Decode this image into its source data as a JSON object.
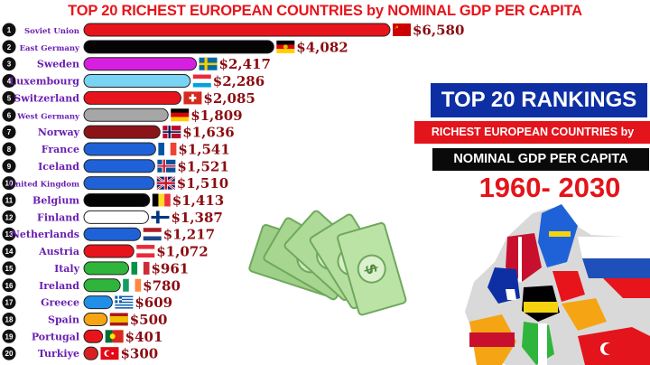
{
  "chart_data": {
    "type": "bar",
    "orientation": "horizontal",
    "title": "TOP 20 RICHEST EUROPEAN COUNTRIES by NOMINAL GDP PER CAPITA",
    "categories": [
      "Soviet Union",
      "East Germany",
      "Sweden",
      "Luxembourg",
      "Switzerland",
      "West Germany",
      "Norway",
      "France",
      "Iceland",
      "United Kingdom",
      "Belgium",
      "Finland",
      "Netherlands",
      "Austria",
      "Italy",
      "Ireland",
      "Greece",
      "Spain",
      "Portugal",
      "Turkiye"
    ],
    "ranks": [
      "1",
      "2",
      "3",
      "4",
      "5",
      "6",
      "7",
      "8",
      "9",
      "10",
      "11",
      "12",
      "13",
      "14",
      "15",
      "16",
      "17",
      "18",
      "19",
      "20"
    ],
    "values": [
      6580,
      4082,
      2417,
      2286,
      2085,
      1809,
      1636,
      1541,
      1521,
      1510,
      1413,
      1387,
      1217,
      1072,
      961,
      780,
      609,
      500,
      401,
      300
    ],
    "value_labels": [
      "$6,580",
      "$4,082",
      "$2,417",
      "$2,286",
      "$2,085",
      "$1,809",
      "$1,636",
      "$1,541",
      "$1,521",
      "$1,510",
      "$1,413",
      "$1,387",
      "$1,217",
      "$1,072",
      "$961",
      "$780",
      "$609",
      "$500",
      "$401",
      "$300"
    ],
    "bar_colors": [
      "#e8141b",
      "#050505",
      "#d61fe0",
      "#79d3f2",
      "#e8141b",
      "#a6a6a6",
      "#8c1318",
      "#1f62d8",
      "#1f62d8",
      "#1f62d8",
      "#050505",
      "#ffffff",
      "#1f62d8",
      "#e8141b",
      "#2fb53b",
      "#2fb53b",
      "#1f8fe8",
      "#f5a413",
      "#e8141b",
      "#d92020"
    ],
    "flags": [
      "ussr-flag",
      "east-germany-flag",
      "sweden-flag",
      "luxembourg-flag",
      "switzerland-flag",
      "west-germany-flag",
      "norway-flag",
      "france-flag",
      "iceland-flag",
      "uk-flag",
      "belgium-flag",
      "finland-flag",
      "netherlands-flag",
      "austria-flag",
      "italy-flag",
      "ireland-flag",
      "greece-flag",
      "spain-flag",
      "portugal-flag",
      "turkiye-flag"
    ]
  },
  "panel": {
    "title": "TOP 20 RANKINGS",
    "subtitle_line1": "RICHEST EUROPEAN COUNTRIES by",
    "subtitle_line2": "NOMINAL GDP PER CAPITA",
    "years": "1960- 2030"
  },
  "decor": {
    "money": "money-bills-icon",
    "map": "europe-flag-map-icon"
  }
}
